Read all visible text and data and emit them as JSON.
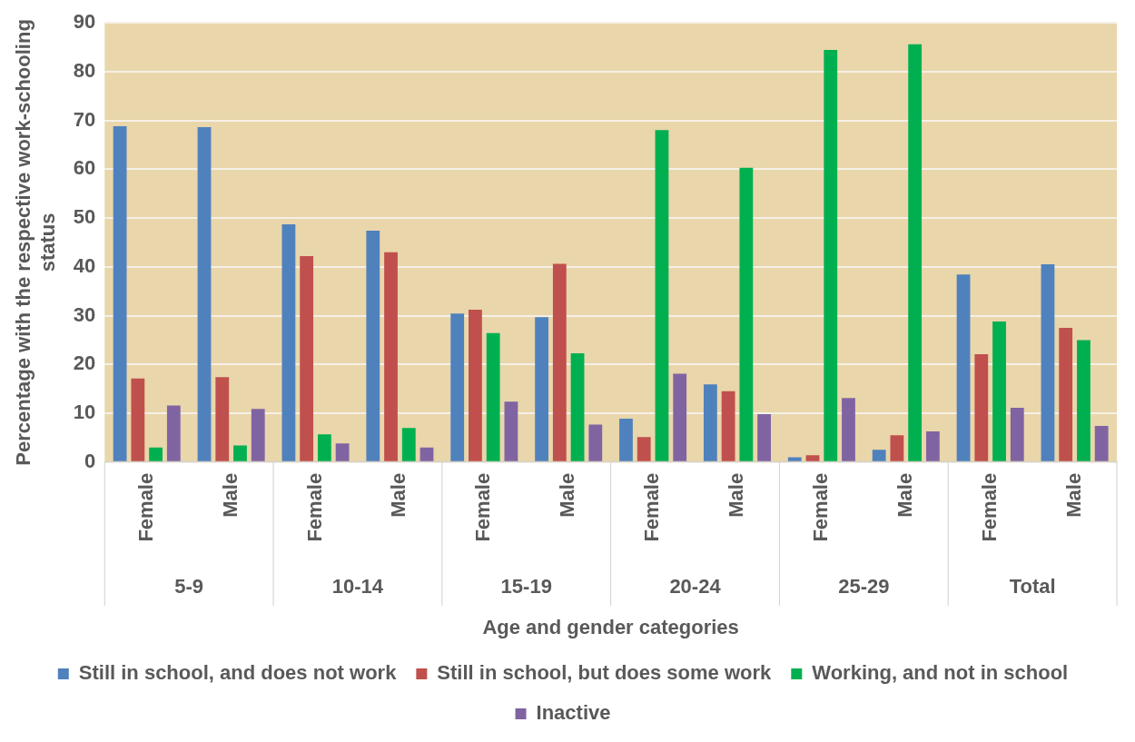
{
  "chart_data": {
    "type": "bar",
    "xlabel": "Age and gender categories",
    "ylabel": "Percentage with the respective work-schooling status",
    "categories": [
      "Female",
      "Male",
      "Female",
      "Male",
      "Female",
      "Male",
      "Female",
      "Male",
      "Female",
      "Male",
      "Female",
      "Male"
    ],
    "annotations": [
      "5-9",
      "10-14",
      "15-19",
      "20-24",
      "25-29",
      "Total"
    ],
    "series": [
      {
        "name": "Still in school, and does not work",
        "color": "#4f81bd",
        "values": [
          68.8,
          68.6,
          48.7,
          47.4,
          30.4,
          29.7,
          8.9,
          15.9,
          1,
          2.5,
          38.4,
          40.5
        ]
      },
      {
        "name": "Still in school, but does some work",
        "color": "#c0504d",
        "values": [
          17.1,
          17.4,
          42.2,
          43,
          31.2,
          40.6,
          5.1,
          14.5,
          1.4,
          5.5,
          22.1,
          27.5
        ]
      },
      {
        "name": "Working, and not in school",
        "color": "#00b050",
        "values": [
          3,
          3.4,
          5.7,
          7,
          26.4,
          22.3,
          68,
          60.3,
          84.4,
          85.6,
          28.8,
          25
        ]
      },
      {
        "name": "Inactive",
        "color": "#8064a2",
        "values": [
          11.6,
          10.9,
          3.8,
          3,
          12.4,
          7.7,
          18.1,
          9.8,
          13.1,
          6.3,
          11.1,
          7.4
        ]
      }
    ],
    "ylim": [
      0,
      90
    ],
    "yticks": [
      0,
      10,
      20,
      30,
      40,
      50,
      60,
      70,
      80,
      90
    ],
    "grid": "y",
    "legend": "bottom"
  }
}
